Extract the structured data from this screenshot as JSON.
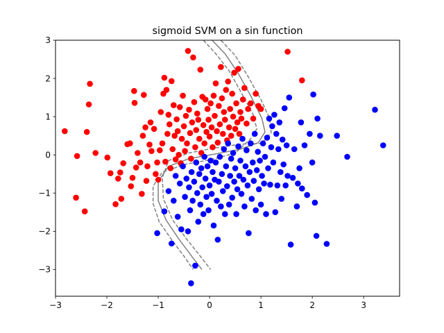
{
  "chart_data": {
    "type": "scatter",
    "title": "sigmoid SVM on a sin function",
    "xlabel": "",
    "ylabel": "",
    "xlim": [
      -3.0,
      3.7
    ],
    "ylim": [
      -3.7,
      3.0
    ],
    "xticks": [
      -3,
      -2,
      -1,
      0,
      1,
      2,
      3
    ],
    "yticks": [
      -3,
      -2,
      -1,
      0,
      1,
      2,
      3
    ],
    "grid": false,
    "colors": {
      "class_red": "#ff0000",
      "class_blue": "#0000ff",
      "boundary": "#808080"
    },
    "series": [
      {
        "color": "#ff0000",
        "points": [
          [
            -2.82,
            0.62
          ],
          [
            -2.58,
            -0.03
          ],
          [
            -2.6,
            -1.12
          ],
          [
            -2.43,
            -1.48
          ],
          [
            -2.39,
            0.6
          ],
          [
            -2.35,
            1.32
          ],
          [
            -2.33,
            1.86
          ],
          [
            -2.22,
            0.05
          ],
          [
            -1.99,
            -0.07
          ],
          [
            -1.93,
            -0.48
          ],
          [
            -1.83,
            -1.29
          ],
          [
            -1.78,
            -0.62
          ],
          [
            -1.74,
            -0.46
          ],
          [
            -1.72,
            -1.15
          ],
          [
            -1.68,
            -0.22
          ],
          [
            -1.6,
            0.28
          ],
          [
            -1.55,
            0.3
          ],
          [
            -1.53,
            -0.82
          ],
          [
            -1.5,
            -0.6
          ],
          [
            -1.47,
            1.67
          ],
          [
            -1.46,
            1.36
          ],
          [
            -1.43,
            -0.33
          ],
          [
            -1.4,
            0.05
          ],
          [
            -1.35,
            -0.2
          ],
          [
            -1.32,
            -1.02
          ],
          [
            -1.3,
            0.5
          ],
          [
            -1.28,
            1.57
          ],
          [
            -1.25,
            0.72
          ],
          [
            -1.23,
            -0.68
          ],
          [
            -1.21,
            -0.3
          ],
          [
            -1.17,
            0.27
          ],
          [
            -1.15,
            0.85
          ],
          [
            -1.13,
            0.1
          ],
          [
            -1.08,
            0.68
          ],
          [
            -1.05,
            -0.5
          ],
          [
            -1.02,
            -0.2
          ],
          [
            -1.0,
            -0.65
          ],
          [
            -0.97,
            0.12
          ],
          [
            -0.95,
            1.12
          ],
          [
            -0.92,
            0.3
          ],
          [
            -0.9,
            1.6
          ],
          [
            -0.88,
            2.02
          ],
          [
            -0.86,
            -0.18
          ],
          [
            -0.84,
            1.7
          ],
          [
            -0.82,
            0.55
          ],
          [
            -0.8,
            1.05
          ],
          [
            -0.78,
            0.8
          ],
          [
            -0.76,
            -0.35
          ],
          [
            -0.74,
            1.93
          ],
          [
            -0.72,
            0.15
          ],
          [
            -0.7,
            1.3
          ],
          [
            -0.68,
            0.5
          ],
          [
            -0.66,
            -0.12
          ],
          [
            -0.64,
            0.93
          ],
          [
            -0.62,
            0.62
          ],
          [
            -0.6,
            0.0
          ],
          [
            -0.58,
            1.25
          ],
          [
            -0.56,
            -0.22
          ],
          [
            -0.54,
            0.42
          ],
          [
            -0.52,
            1.55
          ],
          [
            -0.5,
            0.75
          ],
          [
            -0.48,
            0.1
          ],
          [
            -0.46,
            1.02
          ],
          [
            -0.44,
            0.3
          ],
          [
            -0.42,
            2.72
          ],
          [
            -0.4,
            1.18
          ],
          [
            -0.38,
            0.57
          ],
          [
            -0.36,
            -0.1
          ],
          [
            -0.34,
            0.85
          ],
          [
            -0.32,
            2.55
          ],
          [
            -0.3,
            1.38
          ],
          [
            -0.28,
            0.2
          ],
          [
            -0.26,
            0.65
          ],
          [
            -0.24,
            1.08
          ],
          [
            -0.22,
            0.92
          ],
          [
            -0.2,
            0.42
          ],
          [
            -0.18,
            2.23
          ],
          [
            -0.16,
            0.05
          ],
          [
            -0.14,
            1.52
          ],
          [
            -0.12,
            0.78
          ],
          [
            -0.1,
            0.3
          ],
          [
            -0.08,
            1.45
          ],
          [
            -0.06,
            0.6
          ],
          [
            -0.04,
            1.2
          ],
          [
            -0.02,
            0.92
          ],
          [
            0.0,
            0.48
          ],
          [
            0.02,
            1.35
          ],
          [
            0.04,
            0.72
          ],
          [
            0.06,
            0.2
          ],
          [
            0.08,
            1.55
          ],
          [
            0.1,
            1.02
          ],
          [
            0.12,
            1.87
          ],
          [
            0.14,
            0.62
          ],
          [
            0.16,
            0.32
          ],
          [
            0.18,
            1.28
          ],
          [
            0.2,
            0.8
          ],
          [
            0.22,
            2.3
          ],
          [
            0.24,
            1.48
          ],
          [
            0.26,
            0.55
          ],
          [
            0.28,
            1.12
          ],
          [
            0.3,
            0.92
          ],
          [
            0.32,
            1.7
          ],
          [
            0.34,
            0.38
          ],
          [
            0.36,
            1.92
          ],
          [
            0.38,
            0.72
          ],
          [
            0.4,
            1.2
          ],
          [
            0.42,
            0.5
          ],
          [
            0.44,
            1.6
          ],
          [
            0.46,
            1.0
          ],
          [
            0.48,
            2.15
          ],
          [
            0.5,
            0.68
          ],
          [
            0.52,
            1.35
          ],
          [
            0.54,
            0.85
          ],
          [
            0.56,
            2.25
          ],
          [
            0.58,
            0.55
          ],
          [
            0.6,
            1.12
          ],
          [
            0.62,
            0.95
          ],
          [
            0.65,
            1.45
          ],
          [
            0.68,
            1.75
          ],
          [
            0.72,
            0.82
          ],
          [
            0.75,
            1.2
          ],
          [
            0.8,
            1.35
          ],
          [
            0.85,
            0.95
          ],
          [
            0.9,
            1.6
          ],
          [
            0.95,
            1.28
          ],
          [
            1.0,
            1.2
          ],
          [
            1.52,
            2.7
          ],
          [
            1.8,
            1.95
          ]
        ]
      },
      {
        "color": "#0000ff",
        "points": [
          [
            -1.02,
            -2.05
          ],
          [
            -0.88,
            -1.48
          ],
          [
            -0.8,
            -0.95
          ],
          [
            -0.74,
            -2.32
          ],
          [
            -0.7,
            -1.2
          ],
          [
            -0.66,
            -0.55
          ],
          [
            -0.62,
            -1.62
          ],
          [
            -0.58,
            -0.75
          ],
          [
            -0.55,
            -1.95
          ],
          [
            -0.52,
            -0.3
          ],
          [
            -0.48,
            -1.1
          ],
          [
            -0.45,
            -0.62
          ],
          [
            -0.42,
            -2.0
          ],
          [
            -0.4,
            -0.85
          ],
          [
            -0.38,
            -1.45
          ],
          [
            -0.35,
            -0.45
          ],
          [
            -0.33,
            -1.2
          ],
          [
            -0.3,
            -0.7
          ],
          [
            -0.28,
            -2.9
          ],
          [
            -0.26,
            -0.2
          ],
          [
            -0.24,
            -1.0
          ],
          [
            -0.22,
            -1.75
          ],
          [
            -0.2,
            -0.5
          ],
          [
            -0.18,
            -1.3
          ],
          [
            -0.16,
            -0.35
          ],
          [
            -0.14,
            -0.85
          ],
          [
            -0.12,
            -1.55
          ],
          [
            -0.1,
            -0.05
          ],
          [
            -0.08,
            -0.62
          ],
          [
            -0.06,
            -1.1
          ],
          [
            -0.04,
            -0.3
          ],
          [
            -0.02,
            -1.45
          ],
          [
            0.0,
            -0.8
          ],
          [
            0.02,
            -0.15
          ],
          [
            0.04,
            -1.02
          ],
          [
            0.06,
            -0.45
          ],
          [
            0.08,
            -1.85
          ],
          [
            0.1,
            -0.65
          ],
          [
            0.12,
            -0.2
          ],
          [
            0.14,
            -1.2
          ],
          [
            0.16,
            -2.22
          ],
          [
            0.18,
            -0.7
          ],
          [
            0.2,
            -0.05
          ],
          [
            0.22,
            -1.35
          ],
          [
            0.24,
            -0.5
          ],
          [
            0.26,
            -0.95
          ],
          [
            0.28,
            0.15
          ],
          [
            0.3,
            -1.55
          ],
          [
            0.32,
            -0.3
          ],
          [
            0.34,
            -0.82
          ],
          [
            0.36,
            0.3
          ],
          [
            0.38,
            -1.3
          ],
          [
            0.4,
            -0.55
          ],
          [
            0.42,
            -0.1
          ],
          [
            0.44,
            -1.12
          ],
          [
            0.46,
            0.05
          ],
          [
            0.48,
            -0.7
          ],
          [
            0.5,
            -0.35
          ],
          [
            0.52,
            -1.55
          ],
          [
            0.54,
            -0.9
          ],
          [
            0.56,
            0.22
          ],
          [
            0.58,
            -0.55
          ],
          [
            0.6,
            -0.15
          ],
          [
            0.62,
            -1.02
          ],
          [
            0.64,
            0.42
          ],
          [
            0.66,
            -0.65
          ],
          [
            0.68,
            -1.35
          ],
          [
            0.7,
            -0.3
          ],
          [
            0.72,
            0.12
          ],
          [
            0.74,
            -0.8
          ],
          [
            0.76,
            -2.05
          ],
          [
            0.78,
            -0.45
          ],
          [
            0.8,
            0.3
          ],
          [
            0.82,
            -1.15
          ],
          [
            0.84,
            -0.2
          ],
          [
            0.86,
            -0.68
          ],
          [
            0.88,
            0.55
          ],
          [
            0.9,
            -1.45
          ],
          [
            0.92,
            -0.4
          ],
          [
            0.94,
            0.08
          ],
          [
            0.96,
            -0.9
          ],
          [
            0.98,
            -0.15
          ],
          [
            1.0,
            -1.3
          ],
          [
            1.02,
            -0.55
          ],
          [
            1.04,
            0.3
          ],
          [
            1.06,
            -0.75
          ],
          [
            1.08,
            -0.05
          ],
          [
            1.1,
            -1.55
          ],
          [
            1.12,
            0.45
          ],
          [
            1.14,
            -0.35
          ],
          [
            1.16,
            0.95
          ],
          [
            1.18,
            -0.78
          ],
          [
            1.2,
            0.2
          ],
          [
            1.22,
            0.75
          ],
          [
            1.24,
            -0.2
          ],
          [
            1.26,
            1.05
          ],
          [
            1.28,
            -1.5
          ],
          [
            1.3,
            0.55
          ],
          [
            1.32,
            -0.8
          ],
          [
            1.34,
            0.15
          ],
          [
            1.36,
            0.85
          ],
          [
            1.38,
            -0.45
          ],
          [
            1.4,
            -1.15
          ],
          [
            1.42,
            0.4
          ],
          [
            1.44,
            -0.25
          ],
          [
            1.46,
            1.22
          ],
          [
            1.48,
            -0.8
          ],
          [
            1.5,
            0.25
          ],
          [
            1.52,
            -0.55
          ],
          [
            1.55,
            1.5
          ],
          [
            1.58,
            -2.35
          ],
          [
            1.62,
            -0.6
          ],
          [
            1.65,
            0.15
          ],
          [
            1.7,
            -1.35
          ],
          [
            1.72,
            -0.75
          ],
          [
            1.75,
            -0.35
          ],
          [
            1.78,
            0.85
          ],
          [
            1.8,
            -0.88
          ],
          [
            1.85,
            0.25
          ],
          [
            1.9,
            -1.05
          ],
          [
            1.95,
            0.55
          ],
          [
            2.0,
            -0.2
          ],
          [
            2.02,
            1.58
          ],
          [
            2.05,
            -1.25
          ],
          [
            2.08,
            -2.12
          ],
          [
            2.1,
            0.95
          ],
          [
            2.15,
            0.5
          ],
          [
            2.28,
            -2.33
          ],
          [
            2.48,
            0.5
          ],
          [
            2.68,
            -0.05
          ],
          [
            3.22,
            1.18
          ],
          [
            3.38,
            0.25
          ],
          [
            -0.36,
            -3.36
          ]
        ]
      }
    ],
    "decision_boundary": {
      "center": [
        [
          0.05,
          3.0
        ],
        [
          0.3,
          2.65
        ],
        [
          0.55,
          2.15
        ],
        [
          0.8,
          1.55
        ],
        [
          1.02,
          0.95
        ],
        [
          1.08,
          0.6
        ],
        [
          0.95,
          0.32
        ],
        [
          0.6,
          0.15
        ],
        [
          0.1,
          0.02
        ],
        [
          -0.4,
          -0.1
        ],
        [
          -0.8,
          -0.3
        ],
        [
          -1.0,
          -0.7
        ],
        [
          -1.0,
          -1.2
        ],
        [
          -0.85,
          -1.7
        ],
        [
          -0.6,
          -2.2
        ],
        [
          -0.35,
          -2.65
        ],
        [
          -0.15,
          -3.0
        ]
      ],
      "margin_upper": [
        [
          0.22,
          3.0
        ],
        [
          0.5,
          2.6
        ],
        [
          0.75,
          2.05
        ],
        [
          1.0,
          1.45
        ],
        [
          1.17,
          0.95
        ],
        [
          1.2,
          0.58
        ],
        [
          1.02,
          0.3
        ],
        [
          0.6,
          0.28
        ],
        [
          0.1,
          0.18
        ],
        [
          -0.4,
          0.05
        ],
        [
          -0.8,
          -0.15
        ],
        [
          -0.92,
          -0.6
        ],
        [
          -0.9,
          -1.15
        ],
        [
          -0.72,
          -1.7
        ],
        [
          -0.45,
          -2.2
        ],
        [
          -0.2,
          -2.62
        ],
        [
          0.02,
          -3.0
        ]
      ],
      "margin_lower": [
        [
          -0.12,
          3.0
        ],
        [
          0.12,
          2.65
        ],
        [
          0.38,
          2.2
        ],
        [
          0.62,
          1.62
        ],
        [
          0.85,
          1.05
        ],
        [
          0.92,
          0.68
        ],
        [
          0.8,
          0.42
        ],
        [
          0.5,
          0.05
        ],
        [
          0.05,
          -0.12
        ],
        [
          -0.45,
          -0.24
        ],
        [
          -0.92,
          -0.45
        ],
        [
          -1.1,
          -0.82
        ],
        [
          -1.1,
          -1.28
        ],
        [
          -0.98,
          -1.75
        ],
        [
          -0.75,
          -2.2
        ],
        [
          -0.5,
          -2.65
        ],
        [
          -0.32,
          -3.0
        ]
      ]
    }
  }
}
